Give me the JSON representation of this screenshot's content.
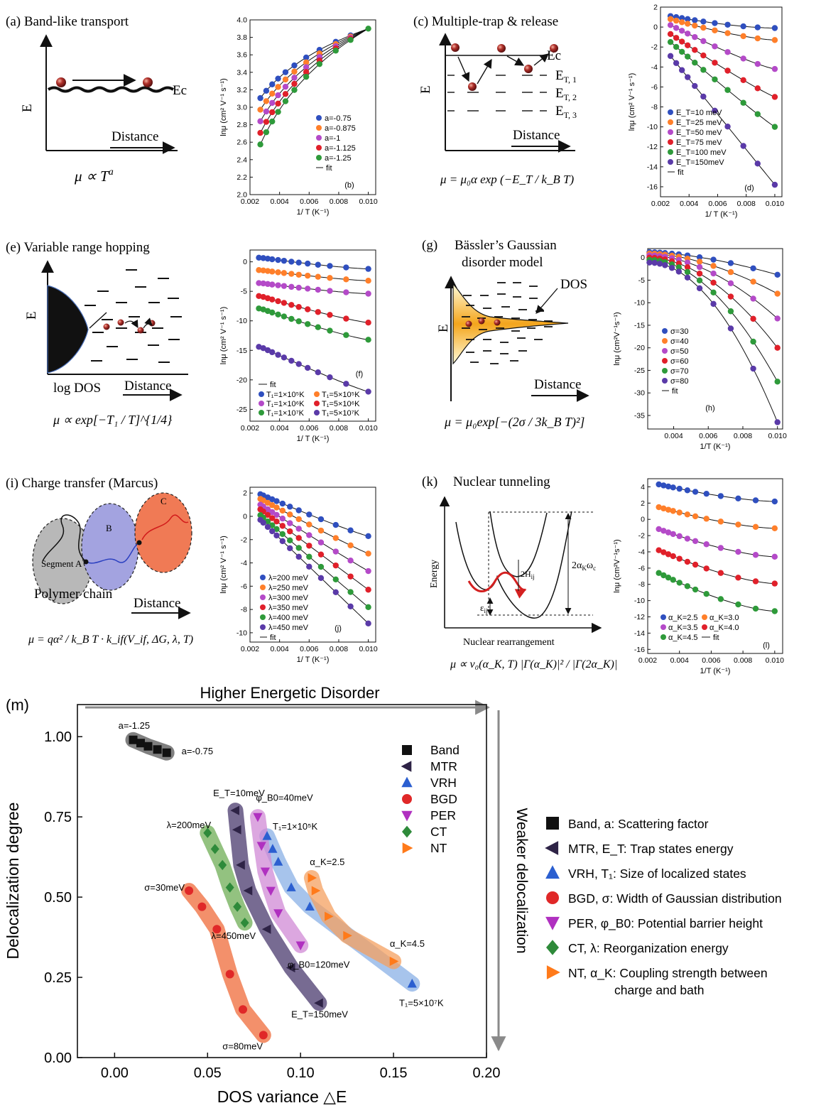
{
  "panels": {
    "a": {
      "caption": "(a) Band-like transport",
      "e": "E",
      "ec": "Ec",
      "distance": "Distance",
      "formula": "μ ∝ T",
      "formula_sup": "a"
    },
    "c": {
      "caption": "(c) Multiple-trap & release",
      "e": "E",
      "ec": "Ec",
      "et1": "E",
      "et1_sub": "T, 1",
      "et2": "E",
      "et2_sub": "T, 2",
      "et3": "E",
      "et3_sub": "T, 3",
      "distance": "Distance",
      "formula": "μ = μ₀α exp (−E_T / k_B T)"
    },
    "e": {
      "caption": "(e) Variable range hopping",
      "e": "E",
      "logdos": "log DOS",
      "distance": "Distance",
      "formula": "μ ∝ exp[−T₁ / T]^{1/4}"
    },
    "g": {
      "caption": "(g)",
      "title1": "Bässler’s Gaussian",
      "title2": "disorder model",
      "dos": "DOS",
      "e": "E",
      "distance": "Distance",
      "formula": "μ = μ₀exp[−(2σ / 3k_B T)²]"
    },
    "i": {
      "caption": "(i) Charge transfer (Marcus)",
      "a": "Segment A",
      "b": "B",
      "c": "C",
      "chain": "Polymer chain",
      "distance": "Distance",
      "formula": "μ = qα² / k_B T · k_if(V_if, ΔG, λ, T)"
    },
    "k": {
      "caption": "(k)",
      "title": "Nuclear tunneling",
      "energy": "Energy",
      "xlabel": "Nuclear rearrangement",
      "h": "2H",
      "h_sub": "ij",
      "eps": "ε",
      "eps_sub": "ij",
      "alpha": "2α",
      "alpha_sub": "K",
      "alpha_tail": "ω",
      "alpha_tail_sub": "c",
      "formula": "μ ∝ v₀(α_K, T) |Γ(α_K)|² / |Γ(2α_K)|"
    }
  },
  "chart_data": [
    {
      "id": "b",
      "type": "scatter",
      "tag": "(b)",
      "xlabel": "1/ T (K⁻¹)",
      "ylabel": "lnμ (cm² V⁻¹ s⁻¹)",
      "xlim": [
        0.002,
        0.0105
      ],
      "ylim": [
        2.0,
        4.0
      ],
      "xticks": [
        0.002,
        0.004,
        0.006,
        0.008,
        0.01
      ],
      "xticklabels": [
        "0.002",
        "0.004",
        "0.006",
        "0.008",
        "0.010"
      ],
      "yticks": [
        2.0,
        2.2,
        2.4,
        2.6,
        2.8,
        3.0,
        3.2,
        3.4,
        3.6,
        3.8,
        4.0
      ],
      "yticklabels": [
        "2.0",
        "2.2",
        "2.4",
        "2.6",
        "2.8",
        "3.0",
        "3.2",
        "3.4",
        "3.6",
        "3.8",
        "4.0"
      ],
      "model": "power",
      "anchor": [
        0.01,
        3.9
      ],
      "x": [
        0.0027,
        0.0031,
        0.0035,
        0.0039,
        0.0044,
        0.005,
        0.0058,
        0.0067,
        0.0078,
        0.0088,
        0.01
      ],
      "series": [
        {
          "name": "a=-0.75",
          "color": "#2f4fbf",
          "p": 0.75,
          "xmax": 0.0088
        },
        {
          "name": "a=-0.875",
          "color": "#ff7f2a",
          "p": 0.875,
          "xmax": 0.0088
        },
        {
          "name": "a=-1",
          "color": "#b44ac8",
          "p": 1.0,
          "xmax": 0.0088
        },
        {
          "name": "a=-1.125",
          "color": "#e0202a",
          "p": 1.125,
          "xmax": 0.0088
        },
        {
          "name": "a=-1.25",
          "color": "#2e9a3a",
          "p": 1.25,
          "xmax": 0.01
        }
      ],
      "legend": {
        "position": "right",
        "fit_label": "fit"
      }
    },
    {
      "id": "d",
      "type": "scatter",
      "tag": "(d)",
      "xlabel": "1/ T (K⁻¹)",
      "ylabel": "lnμ (cm² V⁻¹ s⁻¹)",
      "xlim": [
        0.002,
        0.0105
      ],
      "ylim": [
        -17,
        2
      ],
      "xticks": [
        0.002,
        0.004,
        0.006,
        0.008,
        0.01
      ],
      "xticklabels": [
        "0.002",
        "0.004",
        "0.006",
        "0.008",
        "0.010"
      ],
      "yticks": [
        2,
        0,
        -2,
        -4,
        -6,
        -8,
        -10,
        -12,
        -14,
        -16
      ],
      "yticklabels": [
        "2",
        "0",
        "-2",
        "-4",
        "-6",
        "-8",
        "-10",
        "-12",
        "-14",
        "-16"
      ],
      "model": "curve",
      "x": [
        0.0027,
        0.0031,
        0.0035,
        0.0039,
        0.0044,
        0.005,
        0.0058,
        0.0067,
        0.0078,
        0.0088,
        0.01
      ],
      "series": [
        {
          "name": "E_T=10 meV",
          "color": "#2f4fbf",
          "y0": 1.1,
          "y1": -0.1,
          "k": 1.6
        },
        {
          "name": "E_T=25 meV",
          "color": "#ff7f2a",
          "y0": 0.8,
          "y1": -1.3,
          "k": 1.4
        },
        {
          "name": "E_T=50 meV",
          "color": "#b44ac8",
          "y0": 0.2,
          "y1": -4.2,
          "k": 1.2
        },
        {
          "name": "E_T=75 meV",
          "color": "#e0202a",
          "y0": -0.7,
          "y1": -7.0,
          "k": 1.1
        },
        {
          "name": "E_T=100 meV",
          "color": "#2e9a3a",
          "y0": -1.5,
          "y1": -10.0,
          "k": 1.05
        },
        {
          "name": "E_T=150meV",
          "color": "#5a3aa8",
          "y0": -2.9,
          "y1": -15.8,
          "k": 1.0
        }
      ],
      "legend": {
        "position": "left",
        "fit_label": "fit"
      }
    },
    {
      "id": "f",
      "type": "scatter",
      "tag": "(f)",
      "xlabel": "1/ T (K⁻¹)",
      "ylabel": "lnμ (cm² V⁻¹ s⁻¹)",
      "xlim": [
        0.002,
        0.0105
      ],
      "ylim": [
        -27,
        2
      ],
      "xticks": [
        0.002,
        0.004,
        0.006,
        0.008,
        0.01
      ],
      "xticklabels": [
        "0.002",
        "0.004",
        "0.006",
        "0.008",
        "0.010"
      ],
      "yticks": [
        0,
        -5,
        -10,
        -15,
        -20,
        -25
      ],
      "yticklabels": [
        "0",
        "-5",
        "-10",
        "-15",
        "-20",
        "-25"
      ],
      "model": "curve",
      "x": [
        0.0026,
        0.0029,
        0.0032,
        0.0035,
        0.0039,
        0.0043,
        0.0048,
        0.0053,
        0.0059,
        0.0066,
        0.0074,
        0.0085,
        0.01
      ],
      "series": [
        {
          "name": "T₁=1×10⁵K",
          "color": "#2f4fbf",
          "y0": 0.7,
          "y1": -1.2,
          "k": 1.3
        },
        {
          "name": "T₁=1×10⁶K",
          "color": "#b44ac8",
          "y0": -3.6,
          "y1": -5.4,
          "k": 1.3
        },
        {
          "name": "T₁=1×10⁷K",
          "color": "#2e9a3a",
          "y0": -7.9,
          "y1": -13.2,
          "k": 1.2
        },
        {
          "name": "T₁=5×10⁵K",
          "color": "#ff7f2a",
          "y0": -1.4,
          "y1": -3.2,
          "k": 1.3
        },
        {
          "name": "T₁=5×10⁶K",
          "color": "#e0202a",
          "y0": -5.8,
          "y1": -10.3,
          "k": 1.2
        },
        {
          "name": "T₁=5×10⁷K",
          "color": "#5a3aa8",
          "y0": -14.4,
          "y1": -22.0,
          "k": 1.1
        }
      ],
      "legend": {
        "position": "bottom",
        "fit_label": "fit"
      }
    },
    {
      "id": "h",
      "type": "scatter",
      "tag": "(h)",
      "xlabel": "1/T (K⁻¹)",
      "ylabel": "lnμ (cm²V⁻¹s⁻¹)",
      "xlim": [
        0.0025,
        0.0103
      ],
      "ylim": [
        -38,
        2
      ],
      "xticks": [
        0.004,
        0.006,
        0.008,
        0.01
      ],
      "xticklabels": [
        "0.004",
        "0.006",
        "0.008",
        "0.010"
      ],
      "yticks": [
        0,
        -5,
        -10,
        -15,
        -20,
        -25,
        -30,
        -35
      ],
      "yticklabels": [
        "0",
        "-5",
        "-10",
        "-15",
        "-20",
        "-25",
        "-30",
        "-35"
      ],
      "model": "concave",
      "x": [
        0.0026,
        0.0029,
        0.0032,
        0.0035,
        0.0039,
        0.0043,
        0.0048,
        0.0055,
        0.0063,
        0.0073,
        0.0086,
        0.01
      ],
      "series": [
        {
          "name": "σ=30",
          "color": "#2f4fbf",
          "y0": 1.2,
          "y1": -3.8,
          "k": 1.6
        },
        {
          "name": "σ=40",
          "color": "#ff7f2a",
          "y0": 0.9,
          "y1": -8.0,
          "k": 1.7
        },
        {
          "name": "σ=50",
          "color": "#b44ac8",
          "y0": 0.5,
          "y1": -13.5,
          "k": 1.8
        },
        {
          "name": "σ=60",
          "color": "#e0202a",
          "y0": 0.0,
          "y1": -20.0,
          "k": 1.85
        },
        {
          "name": "σ=70",
          "color": "#2e9a3a",
          "y0": -0.5,
          "y1": -27.5,
          "k": 1.9
        },
        {
          "name": "σ=80",
          "color": "#5a3aa8",
          "y0": -1.1,
          "y1": -36.5,
          "k": 1.95
        }
      ],
      "legend": {
        "position": "left",
        "fit_label": "fit"
      }
    },
    {
      "id": "j",
      "type": "scatter",
      "tag": "(j)",
      "xlabel": "1/ T (K⁻¹)",
      "ylabel": "lnμ (cm² V⁻¹ s⁻¹)",
      "xlim": [
        0.002,
        0.0105
      ],
      "ylim": [
        -10.8,
        2.5
      ],
      "xticks": [
        0.002,
        0.004,
        0.006,
        0.008,
        0.01
      ],
      "xticklabels": [
        "0.002",
        "0.004",
        "0.006",
        "0.008",
        "0.010"
      ],
      "yticks": [
        2,
        0,
        -2,
        -4,
        -6,
        -8,
        -10
      ],
      "yticklabels": [
        "2",
        "0",
        "-2",
        "-4",
        "-6",
        "-8",
        "-10"
      ],
      "model": "curve",
      "x": [
        0.0027,
        0.0029,
        0.0032,
        0.0035,
        0.0038,
        0.0042,
        0.0047,
        0.0053,
        0.006,
        0.0068,
        0.0078,
        0.0088,
        0.01
      ],
      "series": [
        {
          "name": "λ=200 meV",
          "color": "#2f4fbf",
          "y0": 1.9,
          "y1": -1.7,
          "k": 1.1
        },
        {
          "name": "λ=250 meV",
          "color": "#ff7f2a",
          "y0": 1.5,
          "y1": -3.2,
          "k": 1.05
        },
        {
          "name": "λ=300 meV",
          "color": "#b44ac8",
          "y0": 1.0,
          "y1": -4.7,
          "k": 1.02
        },
        {
          "name": "λ=350 meV",
          "color": "#e0202a",
          "y0": 0.6,
          "y1": -6.3,
          "k": 1.0
        },
        {
          "name": "λ=400 meV",
          "color": "#2e9a3a",
          "y0": 0.1,
          "y1": -7.8,
          "k": 1.0
        },
        {
          "name": "λ=450 meV",
          "color": "#5a3aa8",
          "y0": -0.3,
          "y1": -9.2,
          "k": 1.0
        }
      ],
      "legend": {
        "position": "bottom-left",
        "fit_label": "fit"
      }
    },
    {
      "id": "l",
      "type": "scatter",
      "tag": "(l)",
      "xlabel": "1/T (K⁻¹)",
      "ylabel": "lnμ (cm²V⁻¹s⁻¹)",
      "xlim": [
        0.002,
        0.0105
      ],
      "ylim": [
        -16.5,
        5
      ],
      "xticks": [
        0.002,
        0.004,
        0.006,
        0.008,
        0.01
      ],
      "xticklabels": [
        "0.002",
        "0.004",
        "0.006",
        "0.008",
        "0.010"
      ],
      "yticks": [
        4,
        2,
        0,
        -2,
        -4,
        -6,
        -8,
        -10,
        -12,
        -14,
        -16
      ],
      "yticklabels": [
        "4",
        "2",
        "0",
        "-2",
        "-4",
        "-6",
        "-8",
        "-10",
        "-12",
        "-14",
        "-16"
      ],
      "model": "curve",
      "x": [
        0.0027,
        0.003,
        0.0033,
        0.0036,
        0.004,
        0.0045,
        0.005,
        0.0057,
        0.0066,
        0.0077,
        0.0088,
        0.01
      ],
      "series": [
        {
          "name": "α_K=2.5",
          "color": "#2f4fbf",
          "y0": 4.3,
          "y1": 2.2,
          "k": 1.5
        },
        {
          "name": "α_K=3.0",
          "color": "#ff7f2a",
          "y0": 1.5,
          "y1": -1.1,
          "k": 1.5
        },
        {
          "name": "α_K=3.5",
          "color": "#b44ac8",
          "y0": -1.2,
          "y1": -4.6,
          "k": 1.5
        },
        {
          "name": "α_K=4.0",
          "color": "#e0202a",
          "y0": -3.8,
          "y1": -7.9,
          "k": 1.5
        },
        {
          "name": "α_K=4.5",
          "color": "#2e9a3a",
          "y0": -6.6,
          "y1": -11.3,
          "k": 1.5
        }
      ],
      "legend": {
        "position": "bottom",
        "fit_label": "fit"
      }
    },
    {
      "id": "m",
      "type": "scatter",
      "tag": "(m)",
      "xlabel": "DOS variance △E",
      "ylabel": "Delocalization degree",
      "top_label": "Higher Energetic Disorder",
      "right_label": "Weaker delocalization",
      "xlim": [
        -0.02,
        0.2
      ],
      "ylim": [
        0.0,
        1.1
      ],
      "xticks": [
        0.0,
        0.05,
        0.1,
        0.15,
        0.2
      ],
      "xticklabels": [
        "0.00",
        "0.05",
        "0.10",
        "0.15",
        "0.20"
      ],
      "yticks": [
        0.0,
        0.25,
        0.5,
        0.75,
        1.0
      ],
      "yticklabels": [
        "0.00",
        "0.25",
        "0.50",
        "0.75",
        "1.00"
      ],
      "series": [
        {
          "name": "Band",
          "marker": "square",
          "color": "#111111",
          "band": "#555555",
          "x": [
            0.01,
            0.014,
            0.018,
            0.023,
            0.028
          ],
          "y": [
            0.99,
            0.98,
            0.97,
            0.96,
            0.95
          ]
        },
        {
          "name": "MTR",
          "marker": "tri-left",
          "color": "#2e2346",
          "band": "#4a3a6e",
          "x": [
            0.065,
            0.066,
            0.068,
            0.072,
            0.082,
            0.095,
            0.11
          ],
          "y": [
            0.77,
            0.71,
            0.6,
            0.52,
            0.4,
            0.28,
            0.17
          ]
        },
        {
          "name": "VRH",
          "marker": "tri-up",
          "color": "#2b5fd0",
          "band": "#8ab0e6",
          "x": [
            0.082,
            0.085,
            0.088,
            0.095,
            0.105,
            0.16
          ],
          "y": [
            0.69,
            0.65,
            0.61,
            0.53,
            0.47,
            0.23
          ]
        },
        {
          "name": "BGD",
          "marker": "circle",
          "color": "#e02828",
          "band": "#ef6b3a",
          "x": [
            0.04,
            0.047,
            0.055,
            0.062,
            0.069,
            0.08
          ],
          "y": [
            0.52,
            0.47,
            0.4,
            0.26,
            0.15,
            0.07
          ]
        },
        {
          "name": "PER",
          "marker": "tri-down",
          "color": "#b030c0",
          "band": "#d08ad6",
          "x": [
            0.077,
            0.079,
            0.081,
            0.084,
            0.088,
            0.1
          ],
          "y": [
            0.75,
            0.66,
            0.58,
            0.52,
            0.45,
            0.35
          ]
        },
        {
          "name": "CT",
          "marker": "diamond",
          "color": "#2e8a3a",
          "band": "#6fae55",
          "x": [
            0.05,
            0.054,
            0.058,
            0.062,
            0.066,
            0.07
          ],
          "y": [
            0.7,
            0.65,
            0.6,
            0.53,
            0.47,
            0.42
          ]
        },
        {
          "name": "NT",
          "marker": "tri-right",
          "color": "#ff7a1a",
          "band": "#f4a060",
          "x": [
            0.106,
            0.108,
            0.115,
            0.125,
            0.15
          ],
          "y": [
            0.56,
            0.52,
            0.44,
            0.38,
            0.3
          ]
        }
      ],
      "annotations": [
        {
          "text": "a=-1.25",
          "x": 0.002,
          "y": 1.025
        },
        {
          "text": "a=-0.75",
          "x": 0.036,
          "y": 0.945
        },
        {
          "text": "E_T=10meV",
          "x": 0.053,
          "y": 0.815
        },
        {
          "text": "φ_B0=40meV",
          "x": 0.076,
          "y": 0.8
        },
        {
          "text": "λ=200meV",
          "x": 0.028,
          "y": 0.715
        },
        {
          "text": "T₁=1×10⁵K",
          "x": 0.085,
          "y": 0.71
        },
        {
          "text": "α_K=2.5",
          "x": 0.105,
          "y": 0.6
        },
        {
          "text": "σ=30meV",
          "x": 0.016,
          "y": 0.52
        },
        {
          "text": "λ=450meV",
          "x": 0.052,
          "y": 0.37
        },
        {
          "text": "φ_B0=120meV",
          "x": 0.093,
          "y": 0.28
        },
        {
          "text": "α_K=4.5",
          "x": 0.148,
          "y": 0.345
        },
        {
          "text": "T₁=5×10⁷K",
          "x": 0.153,
          "y": 0.16
        },
        {
          "text": "E_T=150meV",
          "x": 0.095,
          "y": 0.125
        },
        {
          "text": "σ=80meV",
          "x": 0.058,
          "y": 0.025
        }
      ],
      "side_legend": [
        {
          "marker": "square",
          "color": "#111111",
          "text": "Band, a: Scattering factor"
        },
        {
          "marker": "tri-left",
          "color": "#2e2346",
          "text": "MTR, E_T: Trap states energy"
        },
        {
          "marker": "tri-up",
          "color": "#2b5fd0",
          "text": "VRH, T₁: Size of localized states"
        },
        {
          "marker": "circle",
          "color": "#e02828",
          "text": "BGD, σ: Width of Gaussian distribution"
        },
        {
          "marker": "tri-down",
          "color": "#b030c0",
          "text": "PER, φ_B0: Potential barrier height"
        },
        {
          "marker": "diamond",
          "color": "#2e8a3a",
          "text": "CT, λ: Reorganization energy"
        },
        {
          "marker": "tri-right",
          "color": "#ff7a1a",
          "text": "NT, α_K: Coupling strength between",
          "text2": "charge and bath"
        }
      ]
    }
  ]
}
